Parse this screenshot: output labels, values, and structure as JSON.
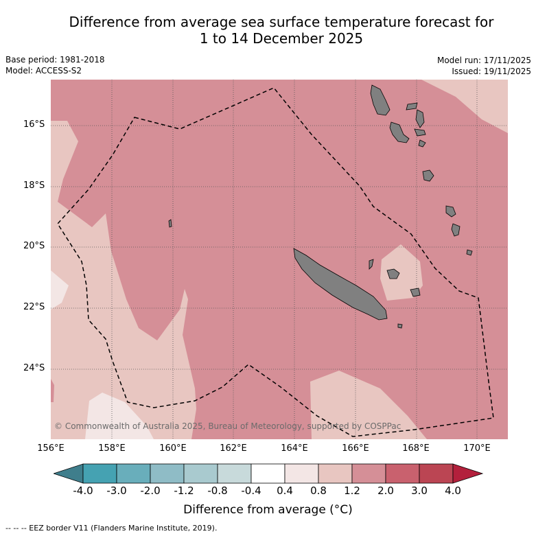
{
  "title_line1": "Difference from average sea surface temperature forecast for",
  "title_line2": "1 to 14 December 2025",
  "base_period": "Base period: 1981-2018",
  "model": "Model: ACCESS-S2",
  "model_run": "Model run: 17/11/2025",
  "issued": "Issued: 19/11/2025",
  "lat_labels": [
    "16°S",
    "18°S",
    "20°S",
    "22°S",
    "24°S"
  ],
  "lon_labels": [
    "156°E",
    "158°E",
    "160°E",
    "162°E",
    "164°E",
    "166°E",
    "168°E",
    "170°E"
  ],
  "credit": "© Commonwealth of Australia 2025, Bureau of Meteorology, supported by COSPPac",
  "colorbar": {
    "ticks": [
      "-4.0",
      "-3.0",
      "-2.0",
      "-1.2",
      "-0.8",
      "-0.4",
      "0.4",
      "0.8",
      "1.2",
      "2.0",
      "3.0",
      "4.0"
    ],
    "colors": [
      "#3f7e8c",
      "#45a2b2",
      "#69aebb",
      "#8fbcc6",
      "#a9cacf",
      "#c8dadb",
      "#ffffff",
      "#f3e6e5",
      "#e8c6c1",
      "#d58f97",
      "#c9616e",
      "#bb4553",
      "#b3203c"
    ],
    "label": "Difference from average (°C)"
  },
  "legend": "--  --  -- EEZ border V11 (Flanders Marine Institute, 2019).",
  "colors": {
    "zone_0_4_0_8": "#f3e6e5",
    "zone_0_8_1_2": "#e8c6c1",
    "zone_1_2_2_0": "#d58f97",
    "land": "#808080"
  }
}
